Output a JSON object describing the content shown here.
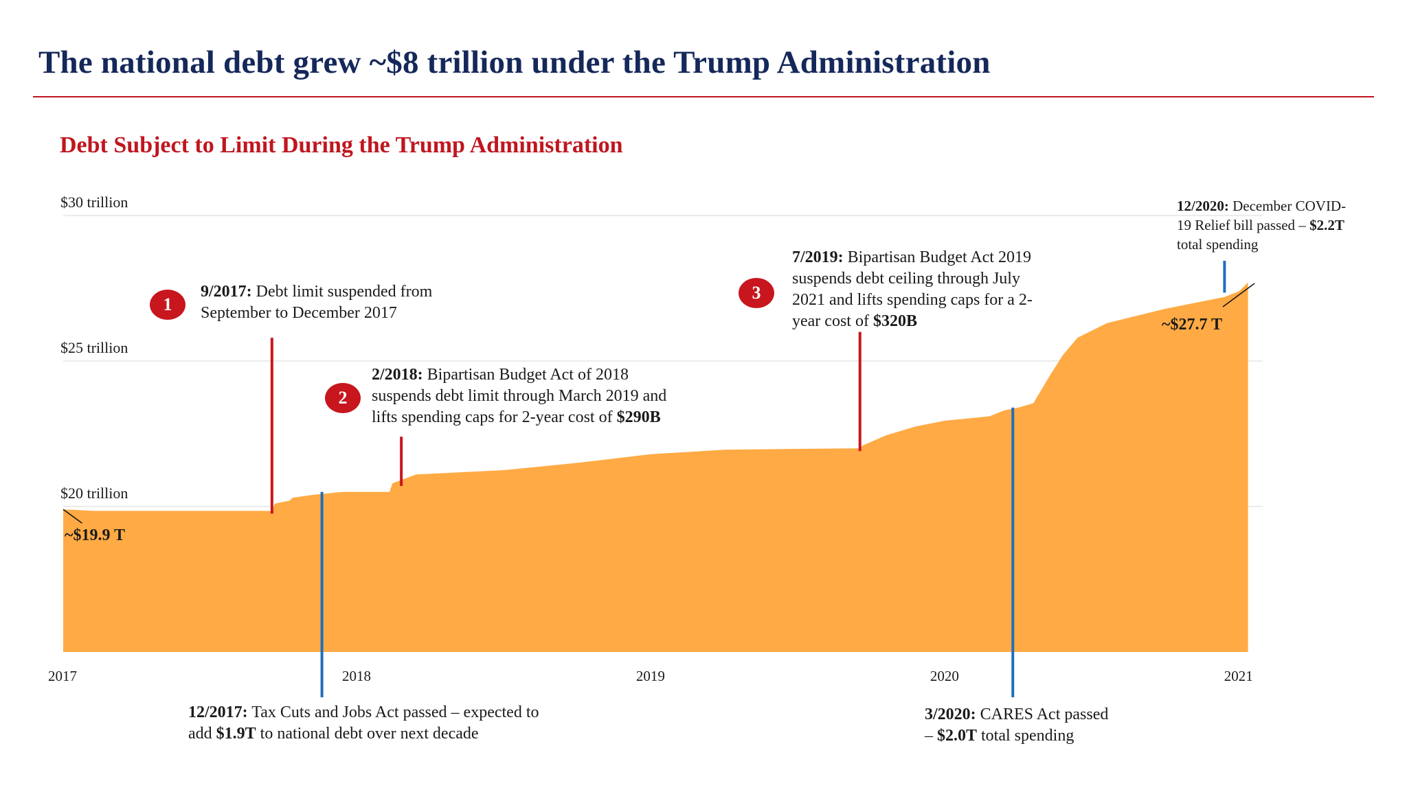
{
  "header": {
    "title": "The national debt grew ~$8 trillion under the Trump Administration"
  },
  "colors": {
    "title": "#15285a",
    "accent_red": "#c0161f",
    "area_fill": "#FFAA44",
    "event_blue": "#1f6fba",
    "event_red": "#c8161e"
  },
  "chart_data": {
    "type": "area",
    "title": "Debt Subject to Limit During the Trump Administration",
    "xlabel": "",
    "ylabel": "",
    "y_tick_labels": [
      "$20 trillion",
      "$25 trillion",
      "$30 trillion"
    ],
    "y_ticks": [
      20,
      25,
      30
    ],
    "ylim": [
      15,
      30
    ],
    "x_tick_labels": [
      "2017",
      "2018",
      "2019",
      "2020",
      "2021"
    ],
    "x_ticks": [
      2017.0,
      2018.0,
      2019.0,
      2020.0,
      2021.0
    ],
    "xlim": [
      2017.0,
      2021.08
    ],
    "grid": true,
    "series": [
      {
        "x": [
          2017.0,
          2017.05,
          2017.1,
          2017.3,
          2017.5,
          2017.71,
          2017.72,
          2017.77,
          2017.78,
          2017.85,
          2017.9,
          2017.95,
          2018.05,
          2018.11,
          2018.12,
          2018.2,
          2018.3,
          2018.5,
          2018.75,
          2019.0,
          2019.25,
          2019.5,
          2019.71,
          2019.72,
          2019.8,
          2019.9,
          2020.0,
          2020.15,
          2020.2,
          2020.25,
          2020.3,
          2020.35,
          2020.4,
          2020.45,
          2020.55,
          2020.65,
          2020.75,
          2020.85,
          2020.95,
          2021.0,
          2021.03
        ],
        "y": [
          19.9,
          19.88,
          19.85,
          19.85,
          19.85,
          19.85,
          20.1,
          20.2,
          20.3,
          20.4,
          20.45,
          20.5,
          20.5,
          20.5,
          20.8,
          21.1,
          21.15,
          21.25,
          21.5,
          21.8,
          21.95,
          21.98,
          22.0,
          22.1,
          22.45,
          22.75,
          22.95,
          23.1,
          23.3,
          23.4,
          23.55,
          24.4,
          25.2,
          25.8,
          26.3,
          26.55,
          26.8,
          27.0,
          27.2,
          27.4,
          27.7
        ]
      }
    ],
    "end_labels": {
      "start": "~$19.9 T",
      "end": "~$27.7 T"
    },
    "annotations": [
      {
        "badge": "1",
        "date": "9/2017:",
        "text_lines": [
          "Debt limit suspended from",
          "September to December 2017"
        ],
        "x": 2017.71,
        "y_top": 25.8,
        "color": "red"
      },
      {
        "badge": "2",
        "date": "2/2018:",
        "text_lines": [
          "Bipartisan Budget Act of  2018",
          "suspends debt limit through March 2019 and",
          "lifts spending caps for 2-year cost of"
        ],
        "bold_tail": "$290B",
        "x": 2018.15,
        "y_top": 22.4,
        "color": "red"
      },
      {
        "badge": "3",
        "date": "7/2019:",
        "text_lines": [
          "Bipartisan Budget Act 2019",
          "suspends debt ceiling through July",
          "2021 and lifts spending caps for a 2-",
          "year cost of"
        ],
        "bold_tail": "$320B",
        "x": 2019.71,
        "y_top": 26.0,
        "color": "red"
      },
      {
        "date": "12/2017:",
        "text_lines": [
          "Tax Cuts and Jobs Act passed – expected to",
          "add",
          "to national debt over next decade"
        ],
        "bold_mid": "$1.9T",
        "x": 2017.88,
        "color": "blue"
      },
      {
        "date": "3/2020:",
        "text_lines": [
          "CARES Act passed",
          "–",
          "total spending"
        ],
        "bold_mid": "$2.0T",
        "x": 2020.23,
        "color": "blue"
      },
      {
        "date": "12/2020:",
        "text_lines": [
          "December COVID-",
          "19 Relief bill passed –",
          "total spending"
        ],
        "bold_mid": "$2.2T",
        "x": 2020.95,
        "color": "blue"
      }
    ]
  }
}
